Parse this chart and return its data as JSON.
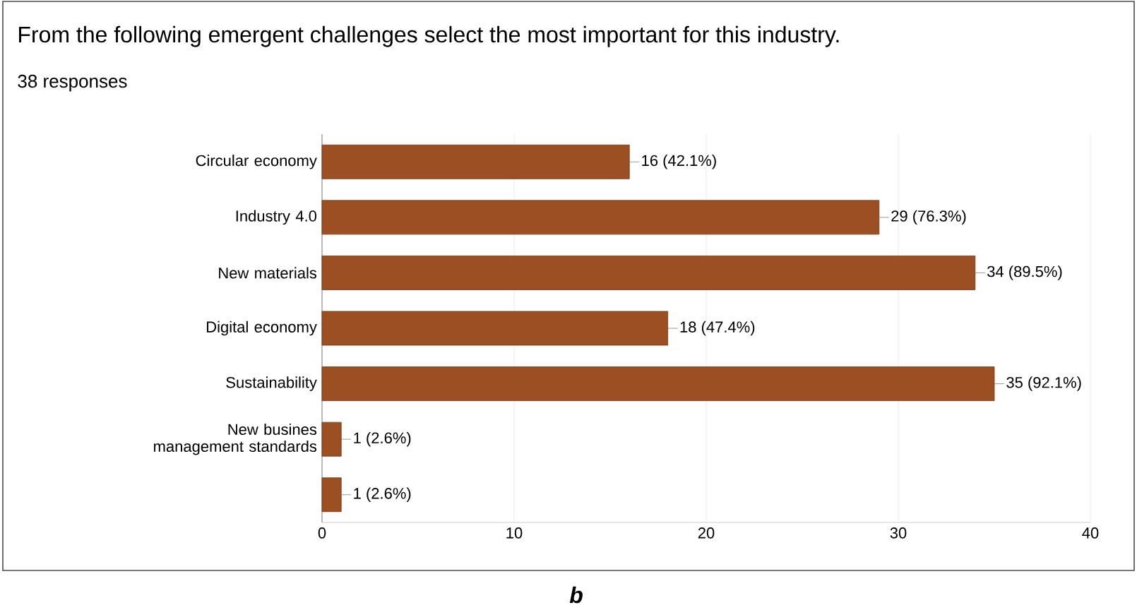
{
  "chart_data": {
    "type": "bar",
    "orientation": "horizontal",
    "title": "From the following emergent challenges select the most important for this industry.",
    "subtitle": "38 responses",
    "categories": [
      "Circular economy",
      "Industry 4.0",
      "New materials",
      "Digital economy",
      "Sustainability",
      "New busines management standards",
      null
    ],
    "values": [
      16,
      29,
      34,
      18,
      35,
      1,
      1
    ],
    "value_labels": [
      "16 (42.1%)",
      "29 (76.3%)",
      "34 (89.5%)",
      "18 (47.4%)",
      "35 (92.1%)",
      "1 (2.6%)",
      "1 (2.6%)"
    ],
    "color": "#9b4f22",
    "xlim": [
      0,
      40
    ],
    "xticks": [
      0,
      10,
      20,
      30,
      40
    ],
    "grid": "x",
    "annotations": [
      "b"
    ]
  }
}
